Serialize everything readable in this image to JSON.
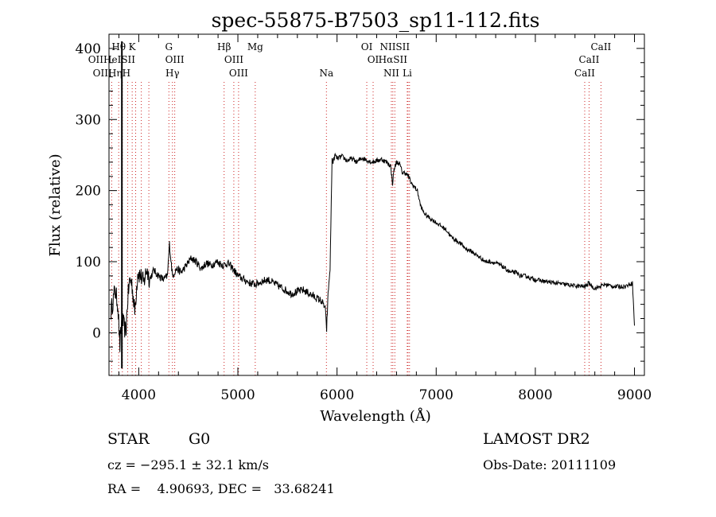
{
  "chart_data": {
    "type": "line",
    "title": "spec-55875-B7503_sp11-112.fits",
    "xlabel": "Wavelength (Å)",
    "ylabel": "Flux (relative)",
    "xlim": [
      3700,
      9100
    ],
    "ylim": [
      -60,
      420
    ],
    "xticks": [
      4000,
      5000,
      6000,
      7000,
      8000,
      9000
    ],
    "yticks": [
      0,
      100,
      200,
      300,
      400
    ],
    "grid": false,
    "line_color": "#000000",
    "marker_color": "#cc2222",
    "series": [
      {
        "x": [
          3720,
          3760,
          3790,
          3810,
          3830,
          3850,
          3870,
          3890,
          3910,
          3930,
          3960,
          3990,
          4020,
          4050,
          4080,
          4110,
          4150,
          4200,
          4250,
          4290,
          4310,
          4340,
          4380,
          4430,
          4480,
          4530,
          4580,
          4630,
          4680,
          4730,
          4790,
          4850,
          4900,
          4950,
          5000,
          5060,
          5120,
          5180,
          5240,
          5300,
          5360,
          5420,
          5480,
          5540,
          5600,
          5660,
          5720,
          5780,
          5840,
          5880,
          5895,
          5910,
          5930,
          5950,
          5960,
          5980,
          6000,
          6050,
          6100,
          6150,
          6200,
          6250,
          6300,
          6350,
          6400,
          6450,
          6500,
          6540,
          6560,
          6575,
          6600,
          6630,
          6660,
          6690,
          6720,
          6750,
          6780,
          6810,
          6840,
          6870,
          6900,
          6950,
          7000,
          7050,
          7100,
          7150,
          7200,
          7250,
          7300,
          7350,
          7400,
          7450,
          7500,
          7550,
          7600,
          7650,
          7700,
          7750,
          7800,
          7850,
          7900,
          7950,
          8000,
          8100,
          8200,
          8300,
          8400,
          8500,
          8540,
          8600,
          8700,
          8800,
          8900,
          8980,
          9000
        ],
        "y": [
          30,
          60,
          40,
          -20,
          20,
          10,
          0,
          50,
          75,
          70,
          30,
          85,
          80,
          70,
          90,
          75,
          88,
          80,
          75,
          80,
          125,
          80,
          90,
          85,
          95,
          105,
          100,
          90,
          98,
          95,
          100,
          95,
          98,
          90,
          80,
          75,
          70,
          68,
          72,
          75,
          70,
          65,
          60,
          55,
          58,
          60,
          55,
          50,
          45,
          35,
          5,
          55,
          90,
          245,
          240,
          250,
          245,
          248,
          242,
          245,
          240,
          246,
          243,
          240,
          242,
          244,
          240,
          235,
          210,
          230,
          240,
          238,
          225,
          225,
          220,
          210,
          205,
          200,
          180,
          170,
          165,
          160,
          155,
          150,
          145,
          135,
          130,
          125,
          118,
          115,
          110,
          105,
          100,
          100,
          98,
          95,
          90,
          85,
          85,
          80,
          80,
          77,
          75,
          72,
          70,
          68,
          66,
          65,
          70,
          62,
          68,
          65,
          65,
          70,
          10
        ]
      }
    ],
    "lines": [
      {
        "row": 0,
        "label": "Hθ",
        "wave": 3798
      },
      {
        "row": 0,
        "label": "K",
        "wave": 3934
      },
      {
        "row": 0,
        "label": "G",
        "wave": 4304
      },
      {
        "row": 0,
        "label": "Hβ",
        "wave": 4861
      },
      {
        "row": 0,
        "label": "Mg",
        "wave": 5175
      },
      {
        "row": 0,
        "label": "OI",
        "wave": 6300
      },
      {
        "row": 0,
        "label": "NIISII",
        "wave": 6583
      },
      {
        "row": 0,
        "label": "CaII",
        "wave": 8662
      },
      {
        "row": 1,
        "label": "OIIHeISII",
        "wave": 3727
      },
      {
        "row": 1,
        "label": "OIII",
        "wave": 4363
      },
      {
        "row": 1,
        "label": "OIII",
        "wave": 4959
      },
      {
        "row": 1,
        "label": "OI",
        "wave": 6364
      },
      {
        "row": 1,
        "label": "HαSII",
        "wave": 6563
      },
      {
        "row": 1,
        "label": "CaII",
        "wave": 8542
      },
      {
        "row": 2,
        "label": "OIIHηH",
        "wave": 3727
      },
      {
        "row": 2,
        "label": "Hγ",
        "wave": 4340
      },
      {
        "row": 2,
        "label": "OIII",
        "wave": 5007
      },
      {
        "row": 2,
        "label": "Na",
        "wave": 5893
      },
      {
        "row": 2,
        "label": "NII",
        "wave": 6548
      },
      {
        "row": 2,
        "label": "Li",
        "wave": 6708
      },
      {
        "row": 2,
        "label": "CaII",
        "wave": 8498
      }
    ],
    "line_markers": [
      3727,
      3798,
      3835,
      3889,
      3934,
      3969,
      4026,
      4102,
      4304,
      4340,
      4363,
      4861,
      4959,
      5007,
      5175,
      5893,
      6300,
      6364,
      6548,
      6563,
      6583,
      6708,
      6716,
      6731,
      8498,
      8542,
      8662
    ]
  },
  "info": {
    "class": "STAR",
    "subclass": "G0",
    "survey": "LAMOST DR2",
    "cz": "cz = −295.1 ± 32.1 km/s",
    "obs_date": "Obs-Date: 20111109",
    "coords": "RA =    4.90693, DEC =   33.68241"
  }
}
